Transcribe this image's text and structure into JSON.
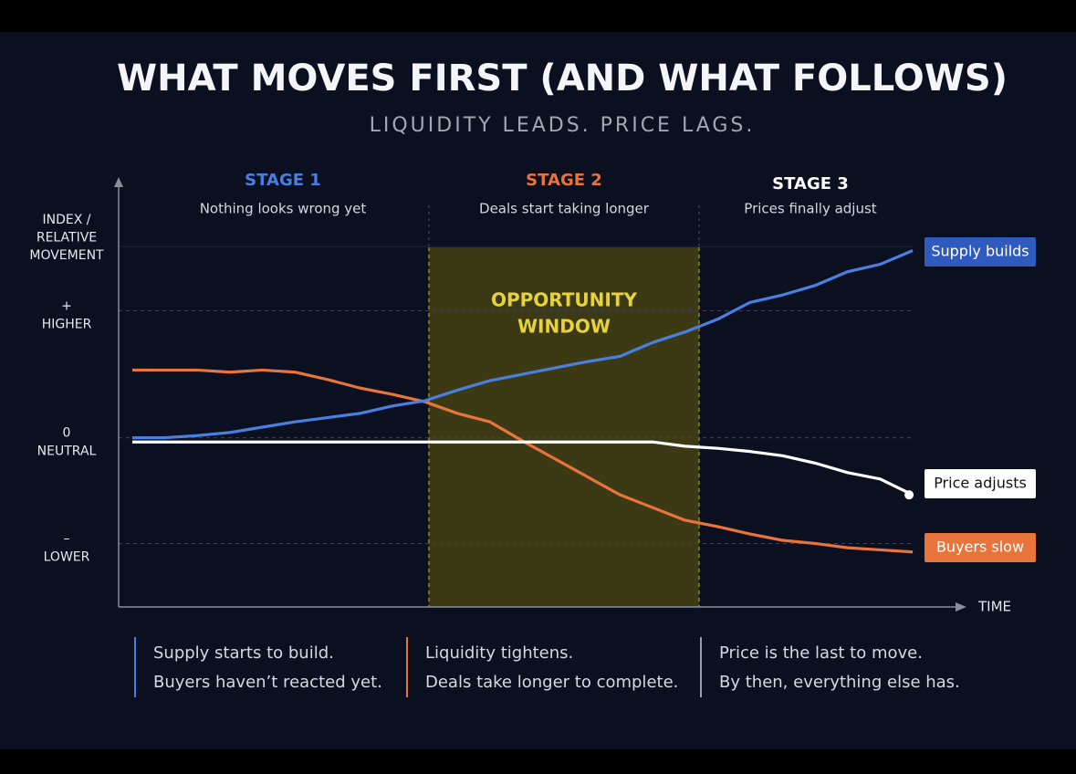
{
  "chart_data": {
    "type": "line",
    "title": "WHAT MOVES FIRST (AND WHAT FOLLOWS)",
    "subtitle": "LIQUIDITY LEADS. PRICE LAGS.",
    "y_axis_label": [
      "INDEX /",
      "RELATIVE",
      "MOVEMENT"
    ],
    "x_axis_label": "TIME",
    "stages": [
      {
        "name": "STAGE 1",
        "description": "Nothing looks wrong yet",
        "color": "#4a7fe0"
      },
      {
        "name": "STAGE 2",
        "description": "Deals start taking longer",
        "color": "#e8743b"
      },
      {
        "name": "STAGE 3",
        "description": "Prices finally adjust",
        "color": "#ffffff"
      }
    ],
    "window": {
      "label": [
        "OPPORTUNITY",
        "WINDOW"
      ],
      "x": [
        9.12,
        17.43
      ]
    },
    "x": [
      0,
      1,
      2,
      3,
      4,
      5,
      6,
      7,
      8,
      9,
      10,
      11,
      12,
      13,
      14,
      15,
      16,
      17,
      18,
      19,
      20,
      21,
      22,
      23,
      24
    ],
    "xlim": [
      -0.42,
      25.85
    ],
    "ylim": [
      -1.6,
      1.8
    ],
    "yticks": [
      {
        "value": 1.2,
        "label": [
          "+",
          "HIGHER"
        ]
      },
      {
        "value": 0,
        "label": [
          "0",
          "NEUTRAL"
        ]
      },
      {
        "value": -1,
        "label": [
          "–",
          "LOWER"
        ]
      }
    ],
    "grid": true,
    "series": [
      {
        "name": "Supply builds",
        "color": "#4a7fe0",
        "label_color": "#2f5bbf",
        "values": [
          0,
          0,
          0.02,
          0.05,
          0.1,
          0.15,
          0.19,
          0.23,
          0.3,
          0.35,
          0.45,
          0.54,
          0.6,
          0.66,
          0.72,
          0.77,
          0.9,
          1.0,
          1.12,
          1.28,
          1.35,
          1.44,
          1.57,
          1.64,
          1.77
        ]
      },
      {
        "name": "Price adjusts",
        "color": "#ffffff",
        "label_color": "#ffffff",
        "values": [
          -0.04,
          -0.04,
          -0.04,
          -0.04,
          -0.04,
          -0.04,
          -0.04,
          -0.04,
          -0.04,
          -0.04,
          -0.04,
          -0.04,
          -0.04,
          -0.04,
          -0.04,
          -0.04,
          -0.04,
          -0.08,
          -0.1,
          -0.13,
          -0.17,
          -0.24,
          -0.33,
          -0.39,
          -0.54
        ]
      },
      {
        "name": "Buyers slow",
        "color": "#e8743b",
        "label_color": "#e8743b",
        "values": [
          0.64,
          0.64,
          0.64,
          0.62,
          0.64,
          0.62,
          0.55,
          0.47,
          0.41,
          0.34,
          0.23,
          0.15,
          -0.03,
          -0.2,
          -0.37,
          -0.54,
          -0.66,
          -0.78,
          -0.84,
          -0.91,
          -0.97,
          -1.0,
          -1.04,
          -1.06,
          -1.08
        ]
      }
    ],
    "notes": [
      {
        "lines": [
          "Supply starts to build.",
          "Buyers haven’t reacted yet."
        ],
        "color": "#4a7fe0"
      },
      {
        "lines": [
          "Liquidity tightens.",
          "Deals take longer to complete."
        ],
        "color": "#e8743b"
      },
      {
        "lines": [
          "Price is the last to move.",
          "By then, everything else has."
        ],
        "color": "#9a9ea6"
      }
    ]
  }
}
